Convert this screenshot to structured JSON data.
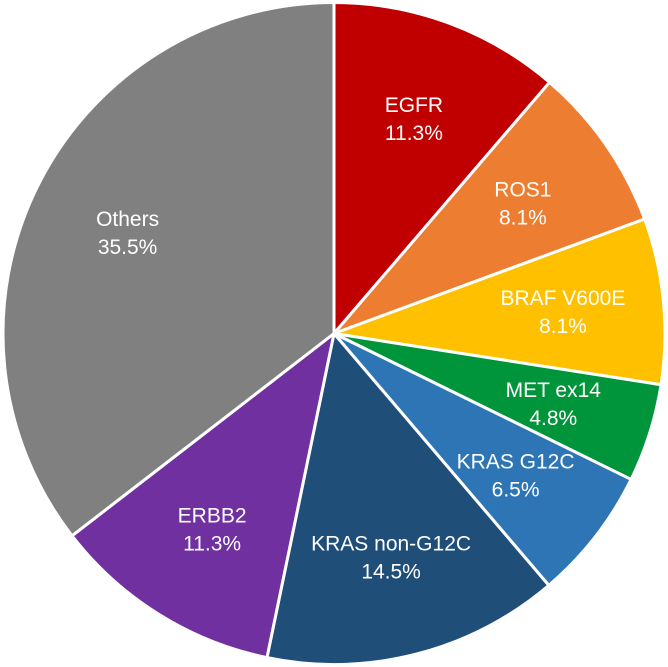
{
  "chart_data": {
    "type": "pie",
    "title": "",
    "start_angle_deg": 0,
    "direction": "clockwise",
    "slices": [
      {
        "label": "EGFR",
        "value": 11.3,
        "value_label": "11.3%",
        "color": "#C00000"
      },
      {
        "label": "ROS1",
        "value": 8.1,
        "value_label": "8.1%",
        "color": "#ED7D31"
      },
      {
        "label": "BRAF V600E",
        "value": 8.1,
        "value_label": "8.1%",
        "color": "#FFC000"
      },
      {
        "label": "MET ex14",
        "value": 4.8,
        "value_label": "4.8%",
        "color": "#00953B"
      },
      {
        "label": "KRAS G12C",
        "value": 6.5,
        "value_label": "6.5%",
        "color": "#2E75B6"
      },
      {
        "label": "KRAS non-G12C",
        "value": 14.5,
        "value_label": "14.5%",
        "color": "#1F4E79"
      },
      {
        "label": "ERBB2",
        "value": 11.3,
        "value_label": "11.3%",
        "color": "#7030A0"
      },
      {
        "label": "Others",
        "value": 35.5,
        "value_label": "35.5%",
        "color": "#808080"
      }
    ],
    "legend": "none"
  }
}
